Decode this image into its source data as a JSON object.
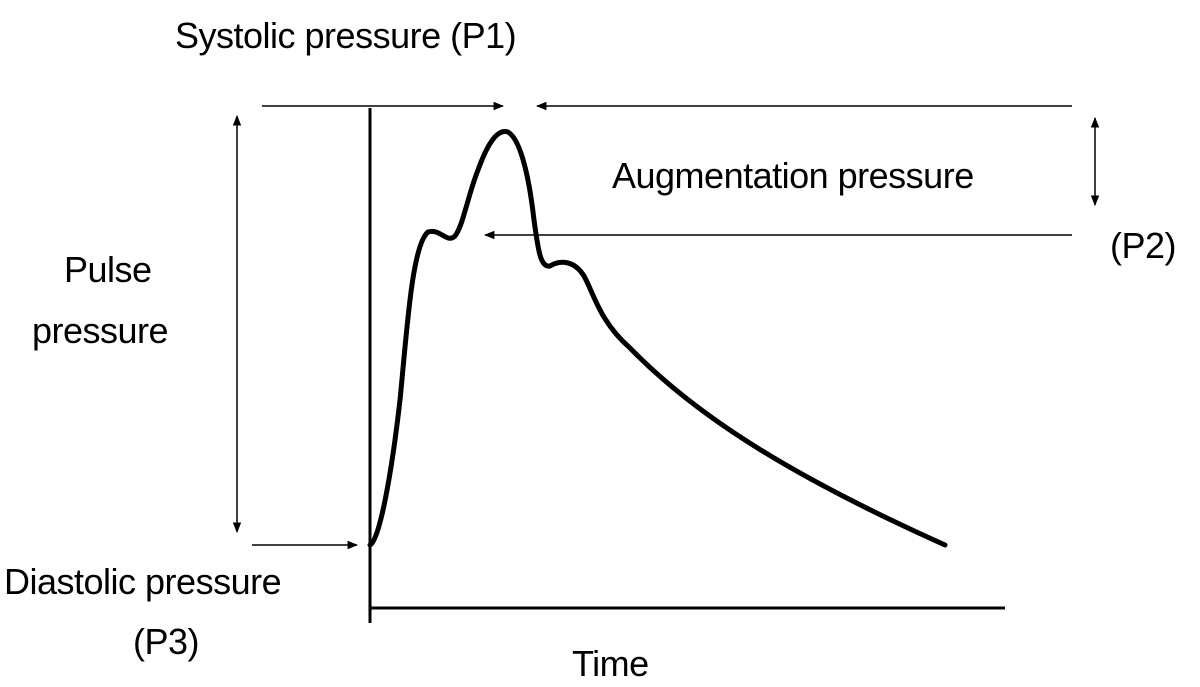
{
  "labels": {
    "systolic": "Systolic pressure (P1)",
    "augmentation": "Augmentation pressure",
    "p2": "(P2)",
    "pulse_line1": "Pulse",
    "pulse_line2": "pressure",
    "diastolic": "Diastolic pressure",
    "p3": "(P3)",
    "x_axis": "Time"
  },
  "colors": {
    "line": "#000000",
    "arrow": "#000000",
    "background": "#ffffff"
  }
}
